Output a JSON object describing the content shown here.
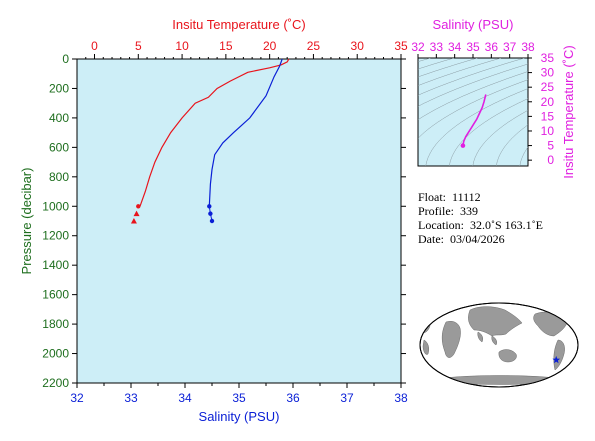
{
  "colors": {
    "plot_bg": "#cdeef7",
    "temperature": "#e8141c",
    "salinity": "#0a1fd6",
    "ts_curve": "#e020e0",
    "axis_pressure": "#1e6e1e",
    "axis_temperature": "#e8141c",
    "axis_salinity": "#0a1fd6",
    "axis_ts_temperature": "#e020e0",
    "axis_ts_salinity": "#e020e0"
  },
  "chart_data": [
    {
      "type": "line",
      "title": "",
      "y_axis": {
        "label": "Pressure (decibar)",
        "range": [
          0,
          2200
        ],
        "inverted": true,
        "ticks": [
          "0",
          "200",
          "400",
          "600",
          "800",
          "1000",
          "1200",
          "1400",
          "1600",
          "1800",
          "2000",
          "2200"
        ]
      },
      "top_axis": {
        "label": "Insitu Temperature (˚C)",
        "range": [
          -2,
          35
        ],
        "ticks": [
          "0",
          "5",
          "10",
          "15",
          "20",
          "25",
          "30",
          "35"
        ]
      },
      "bottom_axis": {
        "label": "Salinity (PSU)",
        "range": [
          32,
          38
        ],
        "ticks": [
          "32",
          "33",
          "34",
          "35",
          "36",
          "37",
          "38"
        ]
      },
      "grid": false,
      "series": [
        {
          "variable": "temperature",
          "axis": "top",
          "points": [
            {
              "x": 22.2,
              "y": 0
            },
            {
              "x": 22.0,
              "y": 20
            },
            {
              "x": 21.3,
              "y": 40
            },
            {
              "x": 20.0,
              "y": 60
            },
            {
              "x": 17.5,
              "y": 90
            },
            {
              "x": 15.5,
              "y": 150
            },
            {
              "x": 14.0,
              "y": 200
            },
            {
              "x": 13.0,
              "y": 260
            },
            {
              "x": 11.5,
              "y": 300
            },
            {
              "x": 10.0,
              "y": 400
            },
            {
              "x": 8.7,
              "y": 500
            },
            {
              "x": 7.7,
              "y": 600
            },
            {
              "x": 6.9,
              "y": 700
            },
            {
              "x": 6.3,
              "y": 800
            },
            {
              "x": 5.8,
              "y": 900
            },
            {
              "x": 5.2,
              "y": 1000
            }
          ],
          "markers": [
            {
              "x": 5.0,
              "y": 1000,
              "shape": "circle"
            },
            {
              "x": 4.8,
              "y": 1050,
              "shape": "triangle"
            },
            {
              "x": 4.5,
              "y": 1100,
              "shape": "triangle"
            }
          ]
        },
        {
          "variable": "salinity",
          "axis": "bottom",
          "points": [
            {
              "x": 35.8,
              "y": 0
            },
            {
              "x": 35.75,
              "y": 50
            },
            {
              "x": 35.65,
              "y": 120
            },
            {
              "x": 35.5,
              "y": 250
            },
            {
              "x": 35.2,
              "y": 400
            },
            {
              "x": 34.9,
              "y": 500
            },
            {
              "x": 34.7,
              "y": 570
            },
            {
              "x": 34.55,
              "y": 650
            },
            {
              "x": 34.5,
              "y": 750
            },
            {
              "x": 34.47,
              "y": 850
            },
            {
              "x": 34.45,
              "y": 1000
            }
          ],
          "markers": [
            {
              "x": 34.45,
              "y": 1000,
              "shape": "circle"
            },
            {
              "x": 34.47,
              "y": 1050,
              "shape": "circle"
            },
            {
              "x": 34.5,
              "y": 1100,
              "shape": "circle"
            }
          ]
        }
      ]
    },
    {
      "type": "line",
      "title": "",
      "x_axis": {
        "label": "Salinity (PSU)",
        "range": [
          32,
          38
        ],
        "ticks": [
          "32",
          "33",
          "34",
          "35",
          "36",
          "37",
          "38"
        ]
      },
      "y_axis": {
        "label": "Insitu Temperature (˚C)",
        "range": [
          -2,
          35
        ],
        "ticks": [
          "0",
          "5",
          "10",
          "15",
          "20",
          "25",
          "30",
          "35"
        ]
      },
      "density_contours": true,
      "series": [
        {
          "variable": "ts_curve",
          "points": [
            {
              "x": 34.45,
              "y": 5.0
            },
            {
              "x": 34.5,
              "y": 6.5
            },
            {
              "x": 34.6,
              "y": 8.0
            },
            {
              "x": 34.75,
              "y": 9.5
            },
            {
              "x": 34.9,
              "y": 11.0
            },
            {
              "x": 35.05,
              "y": 12.5
            },
            {
              "x": 35.2,
              "y": 14.0
            },
            {
              "x": 35.35,
              "y": 16.0
            },
            {
              "x": 35.5,
              "y": 18.0
            },
            {
              "x": 35.6,
              "y": 20.0
            },
            {
              "x": 35.7,
              "y": 22.5
            }
          ]
        }
      ]
    }
  ],
  "info": {
    "float_label": "Float:",
    "float_value": "11112",
    "profile_label": "Profile:",
    "profile_value": "339",
    "location_label": "Location:",
    "location_value": "32.0˚S  163.1˚E",
    "date_label": "Date:",
    "date_value": "03/04/2026"
  },
  "map": {
    "projection": "world-globe-inset",
    "marker_lat": -32.0,
    "marker_lon": 163.1,
    "marker_color": "#0a1fd6"
  }
}
